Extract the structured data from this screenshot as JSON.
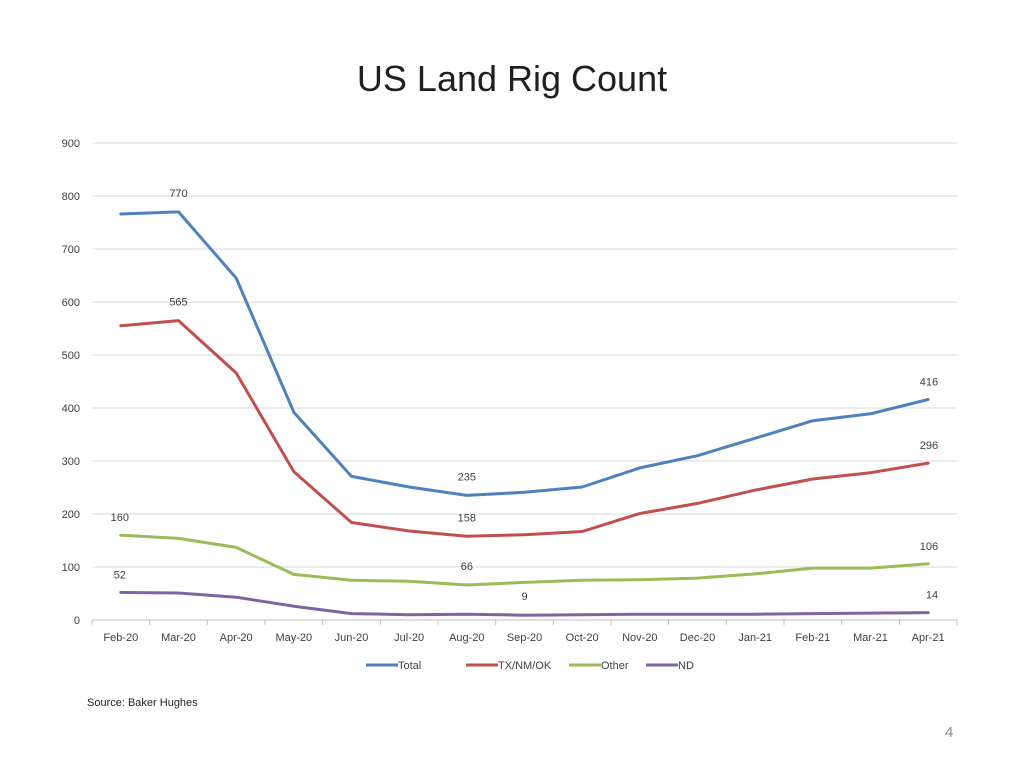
{
  "slide": {
    "source": "Source: Baker Hughes",
    "page_number": "4"
  },
  "chart_data": {
    "type": "line",
    "title": "US Land Rig Count",
    "xlabel": "",
    "ylabel": "",
    "ylim": [
      0,
      900
    ],
    "yticks": [
      0,
      100,
      200,
      300,
      400,
      500,
      600,
      700,
      800,
      900
    ],
    "grid": true,
    "legend_position": "bottom",
    "categories": [
      "Feb-20",
      "Mar-20",
      "Apr-20",
      "May-20",
      "Jun-20",
      "Jul-20",
      "Aug-20",
      "Sep-20",
      "Oct-20",
      "Nov-20",
      "Dec-20",
      "Jan-21",
      "Feb-21",
      "Mar-21",
      "Apr-21"
    ],
    "series": [
      {
        "name": "Total",
        "color": "#4f81bd",
        "values": [
          766,
          770,
          645,
          392,
          271,
          251,
          235,
          241,
          251,
          287,
          310,
          343,
          376,
          389,
          416
        ],
        "labels": [
          {
            "index": 1,
            "text": "770"
          },
          {
            "index": 6,
            "text": "235"
          },
          {
            "index": 14,
            "text": "416"
          }
        ]
      },
      {
        "name": "TX/NM/OK",
        "color": "#c0504d",
        "values": [
          555,
          565,
          466,
          280,
          184,
          168,
          158,
          161,
          167,
          201,
          220,
          245,
          266,
          278,
          296
        ],
        "labels": [
          {
            "index": 1,
            "text": "565"
          },
          {
            "index": 6,
            "text": "158"
          },
          {
            "index": 14,
            "text": "296"
          }
        ]
      },
      {
        "name": "Other",
        "color": "#9bbb59",
        "values": [
          160,
          154,
          137,
          86,
          75,
          73,
          66,
          71,
          75,
          76,
          79,
          87,
          98,
          98,
          106
        ],
        "labels": [
          {
            "index": 0,
            "text": "160"
          },
          {
            "index": 6,
            "text": "66"
          },
          {
            "index": 14,
            "text": "106"
          }
        ]
      },
      {
        "name": "ND",
        "color": "#8064a2",
        "values": [
          52,
          51,
          43,
          26,
          12,
          10,
          11,
          9,
          10,
          11,
          11,
          11,
          12,
          13,
          14
        ],
        "labels": [
          {
            "index": 0,
            "text": "52"
          },
          {
            "index": 7,
            "text": "9"
          },
          {
            "index": 14,
            "text": "14"
          }
        ]
      }
    ]
  }
}
